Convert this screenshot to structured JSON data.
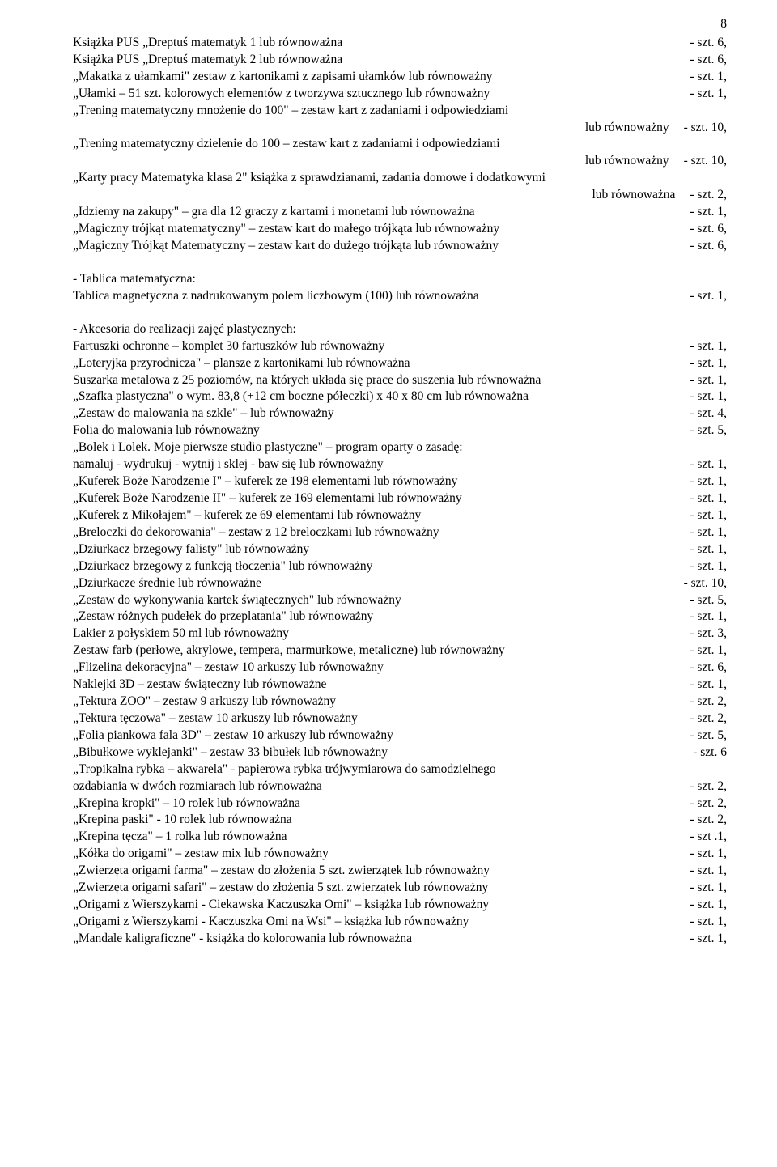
{
  "pageNumber": "8",
  "block1": [
    {
      "desc": "Książka PUS „Dreptuś matematyk 1 lub równoważna",
      "qty": "- szt. 6,"
    },
    {
      "desc": "Książka PUS „Dreptuś matematyk 2 lub równoważna",
      "qty": "- szt. 6,"
    },
    {
      "desc": "„Makatka z ułamkami\" zestaw z kartonikami z zapisami ułamków lub równoważny",
      "qty": "- szt. 1,"
    },
    {
      "desc": "„Ułamki – 51 szt.  kolorowych elementów z tworzywa sztucznego lub równoważny",
      "qty": "- szt. 1,"
    },
    {
      "desc": "„Trening matematyczny mnożenie do 100\" – zestaw kart z zadaniami i odpowiedziami",
      "qty": ""
    },
    {
      "desc": "lub równoważny",
      "qty": "- szt. 10,",
      "right": true
    },
    {
      "desc": "„Trening matematyczny dzielenie do 100 – zestaw kart z zadaniami i odpowiedziami",
      "qty": ""
    },
    {
      "desc": "lub równoważny",
      "qty": "- szt. 10,",
      "right": true
    },
    {
      "desc": "„Karty pracy Matematyka klasa 2\" książka z sprawdzianami, zadania domowe i dodatkowymi",
      "qty": ""
    },
    {
      "desc": "lub równoważna",
      "qty": "- szt. 2,",
      "right": true
    },
    {
      "desc": "„Idziemy na zakupy\" – gra dla 12 graczy z kartami i monetami lub równoważna",
      "qty": "- szt. 1,"
    },
    {
      "desc": "„Magiczny trójkąt matematyczny\" – zestaw kart do małego trójkąta lub równoważny",
      "qty": "- szt. 6,"
    },
    {
      "desc": "„Magiczny Trójkąt Matematyczny – zestaw kart do dużego trójkąta lub równoważny",
      "qty": "- szt. 6,"
    }
  ],
  "block2Header": "- Tablica matematyczna:",
  "block2": [
    {
      "desc": "Tablica magnetyczna z nadrukowanym polem liczbowym (100) lub równoważna",
      "qty": "- szt. 1,"
    }
  ],
  "block3Header": "- Akcesoria do realizacji zajęć plastycznych:",
  "block3": [
    {
      "desc": "Fartuszki ochronne – komplet 30 fartuszków lub równoważny",
      "qty": "- szt. 1,"
    },
    {
      "desc": "„Loteryjka przyrodnicza\" – plansze z kartonikami lub równoważna",
      "qty": "- szt. 1,"
    },
    {
      "desc": "Suszarka metalowa z 25 poziomów, na których układa się prace do suszenia lub równoważna",
      "qty": "- szt. 1,"
    },
    {
      "desc": "„Szafka plastyczna\"  o wym. 83,8 (+12 cm boczne półeczki) x 40 x 80 cm lub równoważna",
      "qty": "- szt. 1,"
    },
    {
      "desc": "„Zestaw do malowania na szkle\" – lub równoważny",
      "qty": "- szt. 4,"
    },
    {
      "desc": "Folia do malowania lub równoważny",
      "qty": "- szt. 5,"
    },
    {
      "desc": "„Bolek i Lolek. Moje pierwsze studio plastyczne\" – program oparty o zasadę:",
      "qty": ""
    },
    {
      "desc": "namaluj - wydrukuj - wytnij i sklej - baw się lub równoważny",
      "qty": "- szt. 1,"
    },
    {
      "desc": "„Kuferek Boże Narodzenie I\" – kuferek ze 198 elementami lub równoważny",
      "qty": "- szt. 1,"
    },
    {
      "desc": "„Kuferek Boże Narodzenie II\" – kuferek ze 169 elementami lub równoważny",
      "qty": "- szt. 1,"
    },
    {
      "desc": "„Kuferek z Mikołajem\" – kuferek ze 69 elementami lub równoważny",
      "qty": "- szt. 1,"
    },
    {
      "desc": "„Breloczki do dekorowania\" – zestaw z 12 breloczkami lub równoważny",
      "qty": "- szt. 1,"
    },
    {
      "desc": "„Dziurkacz brzegowy falisty\" lub równoważny",
      "qty": "- szt. 1,"
    },
    {
      "desc": "„Dziurkacz brzegowy z funkcją tłoczenia\" lub równoważny",
      "qty": "- szt. 1,"
    },
    {
      "desc": "„Dziurkacze średnie lub równoważne",
      "qty": "- szt. 10,"
    },
    {
      "desc": "„Zestaw do wykonywania kartek świątecznych\" lub równoważny",
      "qty": "- szt. 5,"
    },
    {
      "desc": "„Zestaw różnych pudełek do przeplatania\" lub równoważny",
      "qty": "- szt. 1,"
    },
    {
      "desc": "Lakier z połyskiem 50 ml      lub równoważny",
      "qty": "- szt. 3,"
    },
    {
      "desc": "Zestaw farb (perłowe, akrylowe, tempera, marmurkowe, metaliczne) lub równoważny",
      "qty": "- szt. 1,"
    },
    {
      "desc": "„Flizelina dekoracyjna\" – zestaw 10 arkuszy lub równoważny",
      "qty": "- szt. 6,"
    },
    {
      "desc": "Naklejki 3D – zestaw świąteczny lub równoważne",
      "qty": "- szt. 1,"
    },
    {
      "desc": "„Tektura ZOO\" – zestaw 9 arkuszy lub równoważny",
      "qty": "- szt. 2,"
    },
    {
      "desc": "„Tektura tęczowa\" – zestaw 10 arkuszy lub równoważny",
      "qty": "- szt. 2,"
    },
    {
      "desc": "„Folia piankowa fala 3D\" – zestaw 10 arkuszy lub równoważny",
      "qty": "- szt. 5,"
    },
    {
      "desc": "„Bibułkowe wyklejanki\" – zestaw 33 bibułek lub równoważny",
      "qty": "- szt. 6"
    },
    {
      "desc": "„Tropikalna rybka – akwarela\" - papierowa rybka trójwymiarowa do samodzielnego",
      "qty": ""
    },
    {
      "desc": "ozdabiania w dwóch rozmiarach lub równoważna",
      "qty": "- szt. 2,"
    },
    {
      "desc": "„Krepina kropki\" – 10 rolek lub równoważna",
      "qty": "- szt. 2,"
    },
    {
      "desc": "„Krepina paski\" - 10 rolek lub równoważna",
      "qty": "- szt. 2,"
    },
    {
      "desc": "„Krepina tęcza\" – 1 rolka lub równoważna",
      "qty": "- szt .1,"
    },
    {
      "desc": "„Kółka do origami\" – zestaw mix lub równoważny",
      "qty": "- szt. 1,"
    },
    {
      "desc": "„Zwierzęta origami farma\" – zestaw do złożenia 5 szt. zwierzątek lub równoważny",
      "qty": "- szt. 1,"
    },
    {
      "desc": "„Zwierzęta origami safari\" – zestaw do złożenia 5 szt. zwierzątek lub równoważny",
      "qty": "- szt. 1,"
    },
    {
      "desc": "„Origami z Wierszykami - Ciekawska Kaczuszka Omi\" – książka lub równoważny",
      "qty": "- szt. 1,"
    },
    {
      "desc": "„Origami z Wierszykami - Kaczuszka Omi na Wsi\" – książka lub równoważny",
      "qty": "- szt. 1,"
    },
    {
      "desc": "„Mandale kaligraficzne\" - książka do kolorowania lub równoważna",
      "qty": "- szt. 1,"
    }
  ]
}
